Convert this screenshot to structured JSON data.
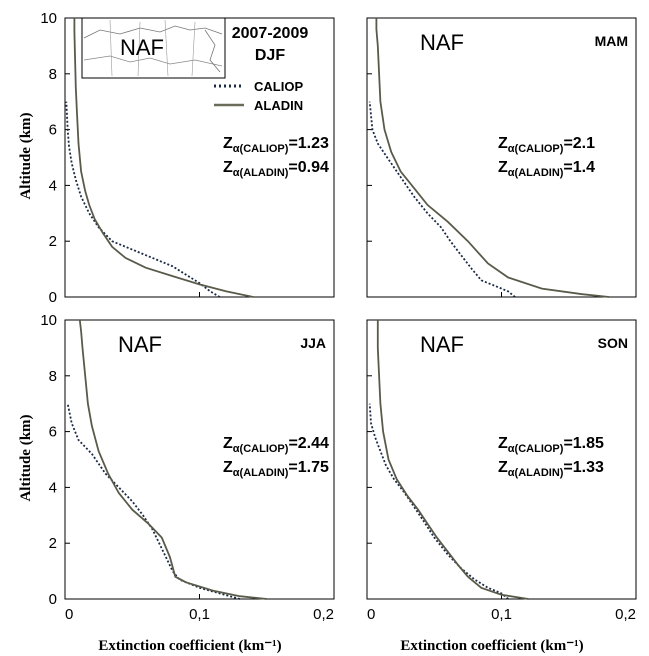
{
  "figure": {
    "period_label": "2007-2009",
    "legend": [
      {
        "label": "CALIOP",
        "style": "dotted",
        "color": "#1a2a44"
      },
      {
        "label": "ALADIN",
        "style": "solid",
        "color": "#5a5a4a"
      }
    ]
  },
  "chart_data": [
    {
      "type": "line",
      "region": "NAF",
      "season": "DJF",
      "xlabel": "",
      "ylabel": "Altitude (km)",
      "xlim": [
        0,
        0.2
      ],
      "ylim": [
        0,
        10
      ],
      "x_ticks": [
        "0",
        "0,1",
        "0,2"
      ],
      "y_ticks": [
        "0",
        "2",
        "4",
        "6",
        "8",
        "10"
      ],
      "z_caliop_label": "Z",
      "z_caliop_sub": "α(CALIOP)",
      "z_caliop_value": "=1.23",
      "z_aladin_label": "Z",
      "z_aladin_sub": "α(ALADIN)",
      "z_aladin_value": "=0.94",
      "series": [
        {
          "name": "CALIOP",
          "x": [
            0.115,
            0.108,
            0.1,
            0.09,
            0.08,
            0.065,
            0.05,
            0.035,
            0.025,
            0.018,
            0.012,
            0.008,
            0.005,
            0.003,
            0.002,
            0.001
          ],
          "y": [
            0,
            0.2,
            0.5,
            0.8,
            1.1,
            1.4,
            1.7,
            2.0,
            2.5,
            3.0,
            3.6,
            4.2,
            4.8,
            5.4,
            6.0,
            7.0
          ]
        },
        {
          "name": "ALADIN",
          "x": [
            0.14,
            0.12,
            0.1,
            0.08,
            0.06,
            0.045,
            0.035,
            0.028,
            0.022,
            0.018,
            0.015,
            0.012,
            0.01,
            0.009,
            0.008,
            0.0075,
            0.007,
            0.007
          ],
          "y": [
            0,
            0.2,
            0.45,
            0.75,
            1.05,
            1.4,
            1.8,
            2.3,
            2.8,
            3.3,
            3.8,
            4.5,
            5.5,
            6.5,
            7.5,
            8.5,
            9.5,
            10
          ]
        }
      ]
    },
    {
      "type": "line",
      "region": "NAF",
      "season": "MAM",
      "xlabel": "",
      "ylabel": "",
      "xlim": [
        0,
        0.2
      ],
      "ylim": [
        0,
        10
      ],
      "x_ticks": [
        "0",
        "0,1",
        "0,2"
      ],
      "y_ticks": [
        "0",
        "2",
        "4",
        "6",
        "8",
        "10"
      ],
      "z_caliop_label": "Z",
      "z_caliop_sub": "α(CALIOP)",
      "z_caliop_value": "=2.1",
      "z_aladin_label": "Z",
      "z_aladin_sub": "α(ALADIN)",
      "z_aladin_value": "=1.4",
      "series": [
        {
          "name": "CALIOP",
          "x": [
            0.11,
            0.105,
            0.095,
            0.085,
            0.078,
            0.07,
            0.062,
            0.055,
            0.045,
            0.035,
            0.025,
            0.015,
            0.008,
            0.004,
            0.002
          ],
          "y": [
            0,
            0.2,
            0.4,
            0.6,
            1.0,
            1.5,
            2.0,
            2.5,
            3.0,
            3.6,
            4.3,
            5.0,
            5.5,
            6.0,
            7.0
          ]
        },
        {
          "name": "ALADIN",
          "x": [
            0.18,
            0.16,
            0.13,
            0.105,
            0.09,
            0.075,
            0.06,
            0.045,
            0.035,
            0.025,
            0.018,
            0.013,
            0.01,
            0.009,
            0.008,
            0.007,
            0.007
          ],
          "y": [
            0,
            0.1,
            0.3,
            0.7,
            1.2,
            2.0,
            2.7,
            3.3,
            3.9,
            4.5,
            5.2,
            6.0,
            7.0,
            8.0,
            9.0,
            9.6,
            10
          ]
        }
      ]
    },
    {
      "type": "line",
      "region": "NAF",
      "season": "JJA",
      "xlabel": "Extinction coefficient (km⁻¹)",
      "ylabel": "Altitude (km)",
      "xlim": [
        0,
        0.2
      ],
      "ylim": [
        0,
        10
      ],
      "x_ticks": [
        "0",
        "0,1",
        "0,2"
      ],
      "y_ticks": [
        "0",
        "2",
        "4",
        "6",
        "8",
        "10"
      ],
      "z_caliop_label": "Z",
      "z_caliop_sub": "α(CALIOP)",
      "z_caliop_value": "=2.44",
      "z_aladin_label": "Z",
      "z_aladin_sub": "α(ALADIN)",
      "z_aladin_value": "=1.75",
      "series": [
        {
          "name": "CALIOP",
          "x": [
            0.13,
            0.115,
            0.1,
            0.085,
            0.08,
            0.075,
            0.07,
            0.065,
            0.058,
            0.05,
            0.04,
            0.03,
            0.02,
            0.01,
            0.005,
            0.002
          ],
          "y": [
            0,
            0.2,
            0.4,
            0.7,
            1.0,
            1.5,
            2.0,
            2.5,
            3.0,
            3.5,
            4.0,
            4.5,
            5.2,
            5.7,
            6.3,
            7.0
          ]
        },
        {
          "name": "ALADIN",
          "x": [
            0.15,
            0.13,
            0.11,
            0.09,
            0.082,
            0.078,
            0.072,
            0.062,
            0.05,
            0.04,
            0.032,
            0.025,
            0.02,
            0.017,
            0.015,
            0.013,
            0.012,
            0.011
          ],
          "y": [
            0,
            0.1,
            0.3,
            0.6,
            0.8,
            1.5,
            2.2,
            2.7,
            3.2,
            3.8,
            4.5,
            5.3,
            6.2,
            7.0,
            8.0,
            9.0,
            9.6,
            10
          ]
        }
      ]
    },
    {
      "type": "line",
      "region": "NAF",
      "season": "SON",
      "xlabel": "Extinction coefficient (km⁻¹)",
      "ylabel": "",
      "xlim": [
        0,
        0.2
      ],
      "ylim": [
        0,
        10
      ],
      "x_ticks": [
        "0",
        "0,1",
        "0,2"
      ],
      "y_ticks": [
        "0",
        "2",
        "4",
        "6",
        "8",
        "10"
      ],
      "z_caliop_label": "Z",
      "z_caliop_sub": "α(CALIOP)",
      "z_caliop_value": "=1.85",
      "z_aladin_label": "Z",
      "z_aladin_sub": "α(ALADIN)",
      "z_aladin_value": "=1.33",
      "series": [
        {
          "name": "CALIOP",
          "x": [
            0.105,
            0.1,
            0.09,
            0.08,
            0.07,
            0.06,
            0.05,
            0.042,
            0.035,
            0.028,
            0.02,
            0.014,
            0.01,
            0.006,
            0.003,
            0.002
          ],
          "y": [
            0,
            0.2,
            0.4,
            0.7,
            1.1,
            1.6,
            2.2,
            2.8,
            3.3,
            3.8,
            4.3,
            4.8,
            5.3,
            5.8,
            6.3,
            7.0
          ]
        },
        {
          "name": "ALADIN",
          "x": [
            0.12,
            0.1,
            0.085,
            0.075,
            0.068,
            0.06,
            0.052,
            0.045,
            0.038,
            0.03,
            0.022,
            0.016,
            0.012,
            0.01,
            0.009,
            0.008,
            0.008
          ],
          "y": [
            0,
            0.15,
            0.4,
            0.8,
            1.2,
            1.7,
            2.2,
            2.7,
            3.2,
            3.7,
            4.3,
            5.0,
            6.0,
            7.0,
            8.0,
            9.0,
            10
          ]
        }
      ]
    }
  ]
}
